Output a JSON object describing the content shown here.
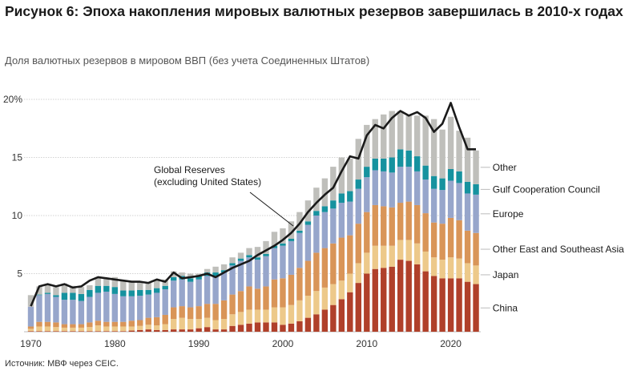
{
  "title": "Рисунок 6: Эпоха накопления мировых валютных резервов завершилась в 2010-х годах",
  "subtitle": "Доля валютных резервов в мировом ВВП (без учета Соединенных Штатов)",
  "source": "Источник: МВФ через CEIC.",
  "chart_data": {
    "type": "bar",
    "stacked": true,
    "xlabel": "",
    "ylabel": "",
    "ylim": [
      0,
      20
    ],
    "xlim": [
      1970,
      2023
    ],
    "x_ticks": [
      "1970",
      "1980",
      "1990",
      "2000",
      "2010",
      "2020"
    ],
    "y_ticks": [
      "5",
      "10",
      "15",
      "20%"
    ],
    "grid": "horizontal",
    "legend_placement": "right",
    "colors": {
      "China": "#b0402a",
      "Japan": "#edc98a",
      "Other East and Southeast Asia": "#d99558",
      "Europe": "#97a6cb",
      "Gulf Cooperation Council": "#16929f",
      "Other": "#bfbfbb",
      "Global Reserves": "#1a1a1a"
    },
    "annotation": "Global Reserves\n(excluding United States)",
    "x": [
      1970,
      1971,
      1972,
      1973,
      1974,
      1975,
      1976,
      1977,
      1978,
      1979,
      1980,
      1981,
      1982,
      1983,
      1984,
      1985,
      1986,
      1987,
      1988,
      1989,
      1990,
      1991,
      1992,
      1993,
      1994,
      1995,
      1996,
      1997,
      1998,
      1999,
      2000,
      2001,
      2002,
      2003,
      2004,
      2005,
      2006,
      2007,
      2008,
      2009,
      2010,
      2011,
      2012,
      2013,
      2014,
      2015,
      2016,
      2017,
      2018,
      2019,
      2020,
      2021,
      2022,
      2023
    ],
    "series": [
      {
        "name": "China",
        "values": [
          0.05,
          0.05,
          0.05,
          0.05,
          0.05,
          0.05,
          0.05,
          0.05,
          0.05,
          0.05,
          0.05,
          0.05,
          0.1,
          0.15,
          0.2,
          0.15,
          0.15,
          0.2,
          0.2,
          0.2,
          0.3,
          0.4,
          0.2,
          0.2,
          0.5,
          0.6,
          0.7,
          0.8,
          0.8,
          0.8,
          0.6,
          0.7,
          0.9,
          1.2,
          1.5,
          1.9,
          2.3,
          2.8,
          3.4,
          4.2,
          5.0,
          5.4,
          5.5,
          5.6,
          6.2,
          6.1,
          5.8,
          5.2,
          4.8,
          4.6,
          4.6,
          4.6,
          4.3,
          4.1
        ]
      },
      {
        "name": "Japan",
        "values": [
          0.2,
          0.4,
          0.4,
          0.35,
          0.3,
          0.3,
          0.3,
          0.35,
          0.5,
          0.4,
          0.4,
          0.4,
          0.35,
          0.35,
          0.4,
          0.4,
          0.5,
          0.9,
          1.0,
          0.9,
          0.8,
          0.8,
          0.8,
          0.9,
          1.0,
          1.1,
          1.2,
          1.1,
          1.1,
          1.3,
          1.5,
          1.6,
          1.8,
          1.9,
          2.0,
          1.9,
          1.8,
          1.6,
          1.6,
          1.7,
          1.8,
          2.0,
          1.9,
          1.8,
          1.7,
          1.8,
          1.8,
          1.7,
          1.6,
          1.6,
          1.8,
          1.7,
          1.6,
          1.6
        ]
      },
      {
        "name": "Other East and Southeast Asia",
        "values": [
          0.2,
          0.4,
          0.4,
          0.4,
          0.3,
          0.3,
          0.3,
          0.4,
          0.4,
          0.4,
          0.4,
          0.4,
          0.5,
          0.5,
          0.6,
          0.7,
          0.8,
          1.0,
          1.0,
          1.0,
          1.1,
          1.2,
          1.4,
          1.6,
          1.7,
          1.8,
          2.0,
          1.8,
          2.0,
          2.4,
          2.5,
          2.6,
          2.8,
          3.0,
          3.3,
          3.4,
          3.5,
          3.7,
          3.3,
          3.4,
          3.5,
          3.5,
          3.4,
          3.3,
          3.2,
          3.3,
          3.3,
          3.3,
          3.0,
          3.1,
          3.4,
          3.3,
          2.8,
          2.8
        ]
      },
      {
        "name": "Europe",
        "values": [
          1.7,
          2.3,
          2.4,
          2.2,
          2.1,
          2.1,
          2.0,
          2.2,
          2.4,
          2.6,
          2.4,
          2.2,
          2.1,
          2.1,
          2.0,
          2.1,
          2.2,
          2.3,
          2.3,
          2.2,
          2.3,
          2.4,
          2.4,
          2.4,
          2.5,
          2.6,
          2.5,
          2.5,
          2.6,
          2.7,
          2.8,
          2.9,
          3.0,
          3.1,
          3.2,
          3.1,
          3.0,
          3.0,
          2.9,
          3.0,
          3.0,
          3.0,
          3.0,
          3.0,
          3.1,
          3.0,
          2.9,
          2.9,
          2.9,
          2.9,
          3.2,
          3.2,
          3.2,
          3.3
        ]
      },
      {
        "name": "Gulf Cooperation Council",
        "values": [
          0.0,
          0.05,
          0.1,
          0.15,
          0.6,
          0.6,
          0.6,
          0.6,
          0.6,
          0.5,
          0.6,
          0.5,
          0.5,
          0.5,
          0.4,
          0.4,
          0.3,
          0.3,
          0.3,
          0.3,
          0.3,
          0.3,
          0.3,
          0.2,
          0.2,
          0.2,
          0.2,
          0.2,
          0.2,
          0.2,
          0.2,
          0.2,
          0.2,
          0.3,
          0.4,
          0.5,
          0.7,
          0.8,
          0.9,
          0.8,
          0.9,
          1.0,
          1.1,
          1.3,
          1.5,
          1.4,
          1.3,
          1.2,
          1.1,
          1.0,
          1.0,
          1.0,
          1.0,
          0.9
        ]
      },
      {
        "name": "Other",
        "values": [
          1.0,
          0.7,
          0.75,
          0.7,
          0.8,
          0.6,
          0.6,
          0.4,
          0.75,
          0.7,
          0.85,
          0.85,
          0.75,
          0.7,
          0.6,
          0.75,
          0.55,
          0.5,
          0.3,
          0.4,
          0.2,
          0.3,
          0.5,
          0.5,
          0.5,
          0.5,
          0.6,
          0.9,
          1.1,
          1.2,
          1.3,
          1.5,
          1.6,
          1.8,
          2.0,
          2.4,
          2.9,
          3.1,
          2.8,
          3.5,
          3.6,
          3.4,
          3.8,
          4.0,
          3.3,
          3.0,
          3.5,
          4.3,
          4.9,
          4.2,
          4.5,
          3.5,
          3.8,
          2.9
        ]
      },
      {
        "name": "Global Reserves",
        "type": "line",
        "values": [
          2.2,
          3.9,
          4.1,
          3.9,
          4.1,
          3.8,
          3.9,
          4.4,
          4.7,
          4.6,
          4.5,
          4.4,
          4.3,
          4.3,
          4.2,
          4.5,
          4.3,
          5.1,
          4.6,
          4.7,
          4.8,
          5.0,
          4.7,
          5.1,
          5.5,
          5.8,
          6.1,
          6.6,
          7.0,
          7.4,
          7.9,
          8.5,
          9.3,
          10.3,
          11.1,
          11.8,
          12.4,
          13.8,
          15.1,
          14.9,
          16.9,
          17.8,
          17.5,
          18.4,
          19.0,
          18.6,
          18.9,
          18.4,
          17.2,
          17.9,
          19.7,
          17.6,
          15.7,
          15.7
        ]
      }
    ]
  }
}
